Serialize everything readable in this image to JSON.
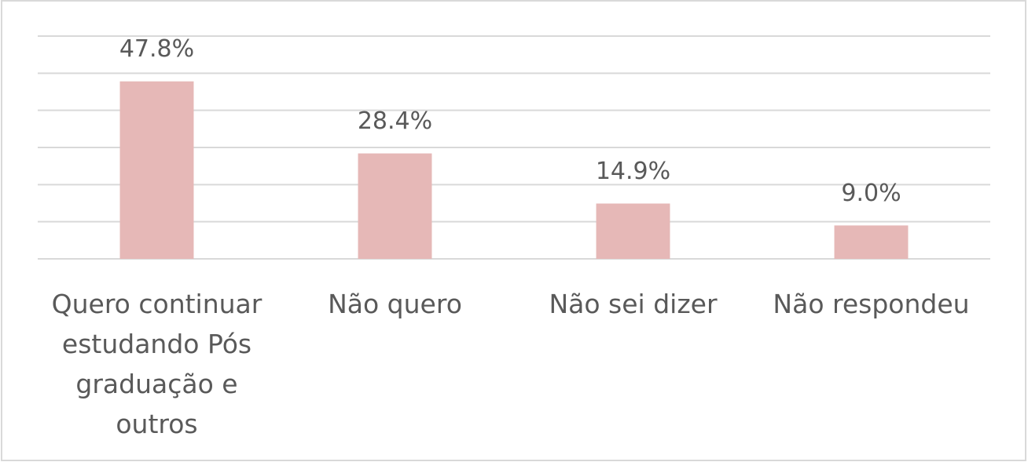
{
  "chart_data": {
    "type": "bar",
    "categories": [
      "Quero continuar estudando Pós graduação e outros",
      "Não quero",
      "Não sei dizer",
      "Não respondeu"
    ],
    "values": [
      47.8,
      28.4,
      14.9,
      9.0
    ],
    "value_labels": [
      "47.8%",
      "28.4%",
      "14.9%",
      "9.0%"
    ],
    "color": "#e6b8b7",
    "ylim": [
      0,
      60
    ],
    "yticks": [
      0,
      10,
      20,
      30,
      40,
      50,
      60
    ],
    "grid": true
  }
}
